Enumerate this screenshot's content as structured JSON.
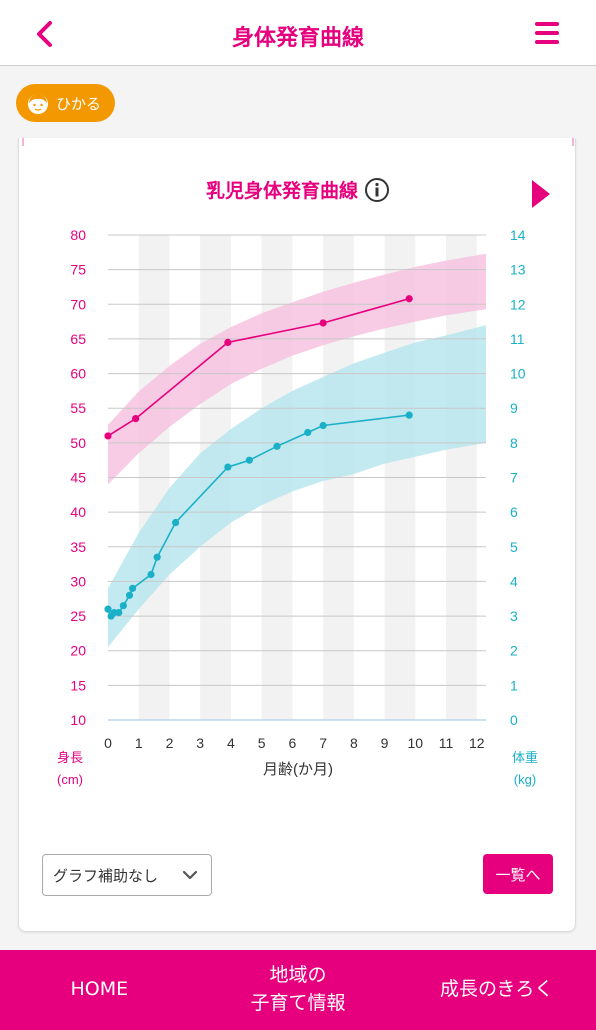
{
  "header": {
    "title": "身体発育曲線",
    "back_icon": "chevron-left-icon",
    "menu_icon": "hamburger-menu-icon"
  },
  "child": {
    "name": "ひかる",
    "icon": "child-face-icon"
  },
  "chart_section": {
    "title": "乳児身体発育曲線",
    "info_icon": "info-icon",
    "next_icon": "triangle-right-icon"
  },
  "chart_data": {
    "type": "line",
    "x_label": "月齢(か月)",
    "x_ticks": [
      0,
      1,
      2,
      3,
      4,
      5,
      6,
      7,
      8,
      9,
      10,
      11,
      12
    ],
    "xlim": [
      0,
      12.3
    ],
    "y_left": {
      "label_line1": "身長",
      "label_line2": "(cm)",
      "ticks": [
        10,
        15,
        20,
        25,
        30,
        35,
        40,
        45,
        50,
        55,
        60,
        65,
        70,
        75,
        80
      ],
      "range": [
        10,
        80
      ]
    },
    "y_right": {
      "label_line1": "体重",
      "label_line2": "(kg)",
      "ticks": [
        0,
        1,
        2,
        3,
        4,
        5,
        6,
        7,
        8,
        9,
        10,
        11,
        12,
        13,
        14
      ],
      "range": [
        0,
        14
      ]
    },
    "grid": true,
    "colors": {
      "height": "#e6007e",
      "height_band": "#f7c3df",
      "weight": "#1ab1c8",
      "weight_band": "#b9e6ee",
      "grid": "#c8c8c8"
    },
    "height_band": {
      "x": [
        0,
        1,
        2,
        3,
        4,
        5,
        6,
        7,
        8,
        9,
        10,
        11,
        12.3
      ],
      "upper": [
        52.6,
        57.4,
        61.1,
        64.3,
        66.7,
        68.7,
        70.3,
        71.8,
        73.1,
        74.3,
        75.4,
        76.3,
        77.3
      ],
      "lower": [
        44.0,
        48.5,
        52.3,
        55.6,
        58.5,
        60.7,
        62.6,
        64.1,
        65.4,
        66.5,
        67.5,
        68.4,
        69.3
      ]
    },
    "weight_band": {
      "x": [
        0,
        1,
        2,
        3,
        4,
        5,
        6,
        7,
        8,
        9,
        10,
        11,
        12.3
      ],
      "upper": [
        3.8,
        5.4,
        6.7,
        7.7,
        8.4,
        9.0,
        9.5,
        9.9,
        10.3,
        10.6,
        10.9,
        11.1,
        11.4
      ],
      "lower": [
        2.1,
        3.2,
        4.2,
        5.0,
        5.7,
        6.2,
        6.6,
        6.9,
        7.1,
        7.4,
        7.6,
        7.8,
        8.0
      ]
    },
    "series": [
      {
        "name": "身長",
        "axis": "left",
        "x": [
          0,
          0.9,
          3.9,
          7.0,
          9.8
        ],
        "y": [
          51.0,
          53.5,
          64.5,
          67.3,
          70.8
        ]
      },
      {
        "name": "体重",
        "axis": "right",
        "x": [
          0,
          0.1,
          0.2,
          0.35,
          0.5,
          0.7,
          0.8,
          1.4,
          1.6,
          2.2,
          3.9,
          4.6,
          5.5,
          6.5,
          7.0,
          9.8
        ],
        "y": [
          3.2,
          3.0,
          3.1,
          3.1,
          3.3,
          3.6,
          3.8,
          4.2,
          4.7,
          5.7,
          7.3,
          7.5,
          7.9,
          8.3,
          8.5,
          8.8
        ]
      }
    ]
  },
  "controls": {
    "assist_select_value": "グラフ補助なし",
    "select_icon": "chevron-down-icon",
    "list_button": "一覧へ"
  },
  "footer": {
    "tab_home": "HOME",
    "tab_local_line1": "地域の",
    "tab_local_line2": "子育て情報",
    "tab_growth": "成長のきろく"
  }
}
